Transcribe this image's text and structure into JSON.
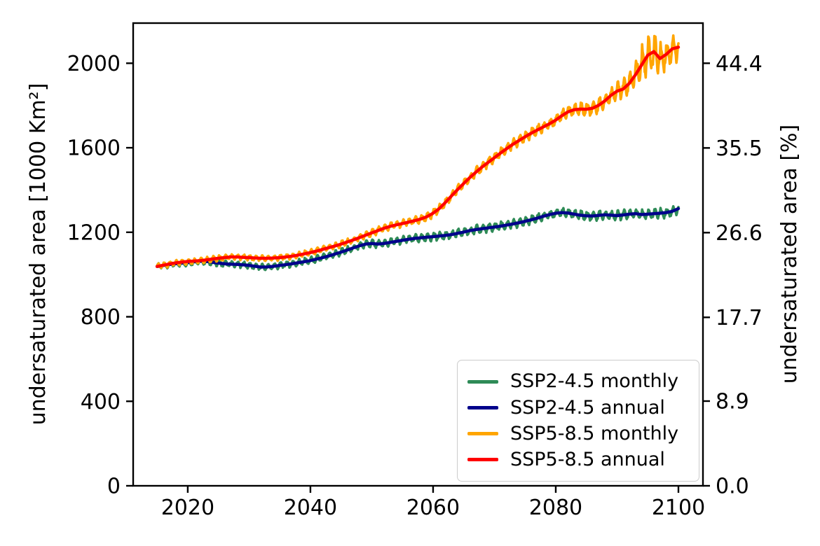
{
  "figure": {
    "background": "#ffffff"
  },
  "chart_data": {
    "type": "line",
    "title": "",
    "xlabel": "",
    "ylabel_left": "undersaturated area [1000 Km²]",
    "ylabel_right": "undersaturated area [%]",
    "x_ticks": [
      "2020",
      "2040",
      "2060",
      "2080",
      "2100"
    ],
    "y_ticks_left": [
      "0",
      "400",
      "800",
      "1200",
      "1600",
      "2000"
    ],
    "y_ticks_right": [
      "0.0",
      "8.9",
      "17.7",
      "26.6",
      "35.5",
      "44.4"
    ],
    "xlim": [
      2011.1,
      2104.0
    ],
    "ylim_left": [
      0,
      2190
    ],
    "right_axis_percent_at_2000_km2": 44.4,
    "grid": false,
    "legend_position": "lower right",
    "years": [
      2015,
      2016,
      2017,
      2018,
      2019,
      2020,
      2021,
      2022,
      2023,
      2024,
      2025,
      2026,
      2027,
      2028,
      2029,
      2030,
      2031,
      2032,
      2033,
      2034,
      2035,
      2036,
      2037,
      2038,
      2039,
      2040,
      2041,
      2042,
      2043,
      2044,
      2045,
      2046,
      2047,
      2048,
      2049,
      2050,
      2051,
      2052,
      2053,
      2054,
      2055,
      2056,
      2057,
      2058,
      2059,
      2060,
      2061,
      2062,
      2063,
      2064,
      2065,
      2066,
      2067,
      2068,
      2069,
      2070,
      2071,
      2072,
      2073,
      2074,
      2075,
      2076,
      2077,
      2078,
      2079,
      2080,
      2081,
      2082,
      2083,
      2084,
      2085,
      2086,
      2087,
      2088,
      2089,
      2090,
      2091,
      2092,
      2093,
      2094,
      2095,
      2096,
      2097,
      2098,
      2099,
      2100
    ],
    "series": [
      {
        "name": "SSP2-4.5 monthly",
        "color": "#2e8b57",
        "kind": "monthly",
        "annual_ref": 1,
        "amplitude": {
          "years": [
            2015,
            2050,
            2080,
            2100
          ],
          "values": [
            13,
            16,
            20,
            22
          ]
        }
      },
      {
        "name": "SSP2-4.5 annual",
        "color": "#00008b",
        "kind": "annual",
        "values": [
          1038,
          1043,
          1047,
          1051,
          1054,
          1056,
          1060,
          1063,
          1062,
          1058,
          1054,
          1051,
          1049,
          1048,
          1046,
          1043,
          1039,
          1035,
          1036,
          1039,
          1043,
          1047,
          1051,
          1056,
          1061,
          1066,
          1073,
          1080,
          1088,
          1097,
          1106,
          1116,
          1126,
          1136,
          1144,
          1147,
          1144,
          1147,
          1152,
          1157,
          1162,
          1167,
          1171,
          1174,
          1177,
          1179,
          1182,
          1185,
          1189,
          1195,
          1201,
          1208,
          1213,
          1217,
          1221,
          1225,
          1229,
          1234,
          1239,
          1245,
          1252,
          1259,
          1267,
          1276,
          1284,
          1290,
          1293,
          1291,
          1286,
          1281,
          1278,
          1277,
          1280,
          1283,
          1281,
          1279,
          1282,
          1286,
          1288,
          1284,
          1286,
          1288,
          1290,
          1293,
          1299,
          1312
        ]
      },
      {
        "name": "SSP5-8.5 monthly",
        "color": "#ffa500",
        "kind": "monthly",
        "annual_ref": 3,
        "amplitude": {
          "years": [
            2015,
            2040,
            2055,
            2065,
            2075,
            2082,
            2088,
            2091,
            2092,
            2093,
            2094,
            2095,
            2096,
            2097,
            2098,
            2099,
            2100
          ],
          "values": [
            12,
            13,
            16,
            19,
            23,
            27,
            33,
            40,
            48,
            66,
            85,
            92,
            83,
            68,
            62,
            63,
            58
          ]
        }
      },
      {
        "name": "SSP5-8.5 annual",
        "color": "#ff0000",
        "kind": "annual",
        "values": [
          1038,
          1044,
          1050,
          1055,
          1059,
          1062,
          1064,
          1066,
          1069,
          1073,
          1077,
          1080,
          1083,
          1083,
          1081,
          1080,
          1078,
          1077,
          1077,
          1078,
          1080,
          1083,
          1087,
          1092,
          1098,
          1104,
          1111,
          1119,
          1127,
          1135,
          1144,
          1154,
          1164,
          1175,
          1186,
          1197,
          1208,
          1219,
          1228,
          1235,
          1241,
          1248,
          1255,
          1263,
          1274,
          1290,
          1312,
          1341,
          1372,
          1402,
          1431,
          1459,
          1485,
          1509,
          1531,
          1553,
          1575,
          1596,
          1616,
          1634,
          1652,
          1669,
          1684,
          1699,
          1714,
          1731,
          1752,
          1770,
          1780,
          1783,
          1782,
          1787,
          1801,
          1822,
          1848,
          1868,
          1878,
          1905,
          1945,
          1992,
          2038,
          2055,
          2022,
          2042,
          2068,
          2076
        ]
      }
    ]
  }
}
